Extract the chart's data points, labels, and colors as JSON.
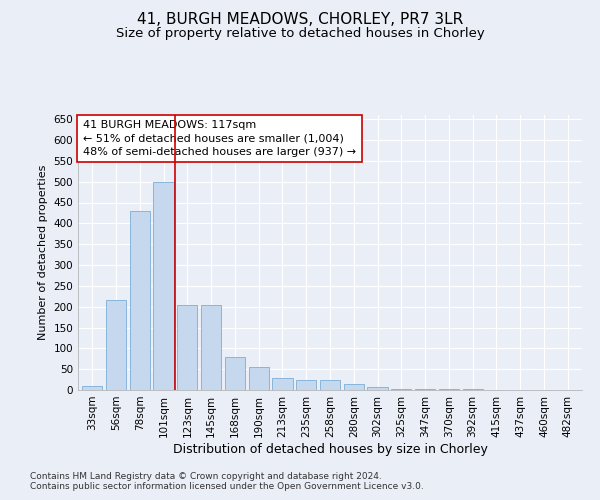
{
  "title1": "41, BURGH MEADOWS, CHORLEY, PR7 3LR",
  "title2": "Size of property relative to detached houses in Chorley",
  "xlabel": "Distribution of detached houses by size in Chorley",
  "ylabel": "Number of detached properties",
  "categories": [
    "33sqm",
    "56sqm",
    "78sqm",
    "101sqm",
    "123sqm",
    "145sqm",
    "168sqm",
    "190sqm",
    "213sqm",
    "235sqm",
    "258sqm",
    "280sqm",
    "302sqm",
    "325sqm",
    "347sqm",
    "370sqm",
    "392sqm",
    "415sqm",
    "437sqm",
    "460sqm",
    "482sqm"
  ],
  "values": [
    10,
    215,
    430,
    500,
    205,
    205,
    80,
    55,
    30,
    25,
    25,
    15,
    8,
    3,
    2,
    2,
    2,
    1,
    1,
    1,
    1
  ],
  "bar_color": "#c5d8ed",
  "bar_edge_color": "#7aaed6",
  "marker_index": 4,
  "marker_color": "#cc0000",
  "annotation_line1": "41 BURGH MEADOWS: 117sqm",
  "annotation_line2": "← 51% of detached houses are smaller (1,004)",
  "annotation_line3": "48% of semi-detached houses are larger (937) →",
  "annotation_box_facecolor": "#ffffff",
  "annotation_box_edgecolor": "#cc0000",
  "ylim": [
    0,
    660
  ],
  "yticks": [
    0,
    50,
    100,
    150,
    200,
    250,
    300,
    350,
    400,
    450,
    500,
    550,
    600,
    650
  ],
  "footnote1": "Contains HM Land Registry data © Crown copyright and database right 2024.",
  "footnote2": "Contains public sector information licensed under the Open Government Licence v3.0.",
  "background_color": "#eaeff7",
  "grid_color": "#ffffff",
  "title1_fontsize": 11,
  "title2_fontsize": 9.5,
  "xlabel_fontsize": 9,
  "ylabel_fontsize": 8,
  "tick_fontsize": 7.5,
  "annotation_fontsize": 8,
  "footnote_fontsize": 6.5
}
